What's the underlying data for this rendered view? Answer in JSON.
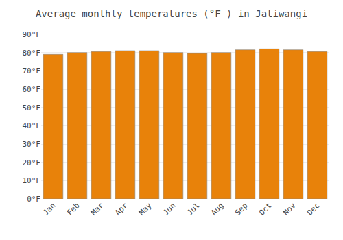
{
  "chart_data": {
    "type": "bar",
    "title": "Average monthly temperatures (°F ) in Jatiwangi",
    "categories": [
      "Jan",
      "Feb",
      "Mar",
      "Apr",
      "May",
      "Jun",
      "Jul",
      "Aug",
      "Sep",
      "Oct",
      "Nov",
      "Dec"
    ],
    "values": [
      79,
      80,
      80.5,
      81,
      81,
      80,
      79.5,
      80,
      81.5,
      82,
      81.5,
      80.5
    ],
    "color": "#E8820A",
    "ylim": [
      0,
      90
    ],
    "yticks": [
      {
        "value": 0,
        "label": "0°F"
      },
      {
        "value": 10,
        "label": "10°F"
      },
      {
        "value": 20,
        "label": "20°F"
      },
      {
        "value": 30,
        "label": "30°F"
      },
      {
        "value": 40,
        "label": "40°F"
      },
      {
        "value": 50,
        "label": "50°F"
      },
      {
        "value": 60,
        "label": "60°F"
      },
      {
        "value": 70,
        "label": "70°F"
      },
      {
        "value": 80,
        "label": "80°F"
      },
      {
        "value": 90,
        "label": "90°F"
      }
    ],
    "grid": true
  }
}
